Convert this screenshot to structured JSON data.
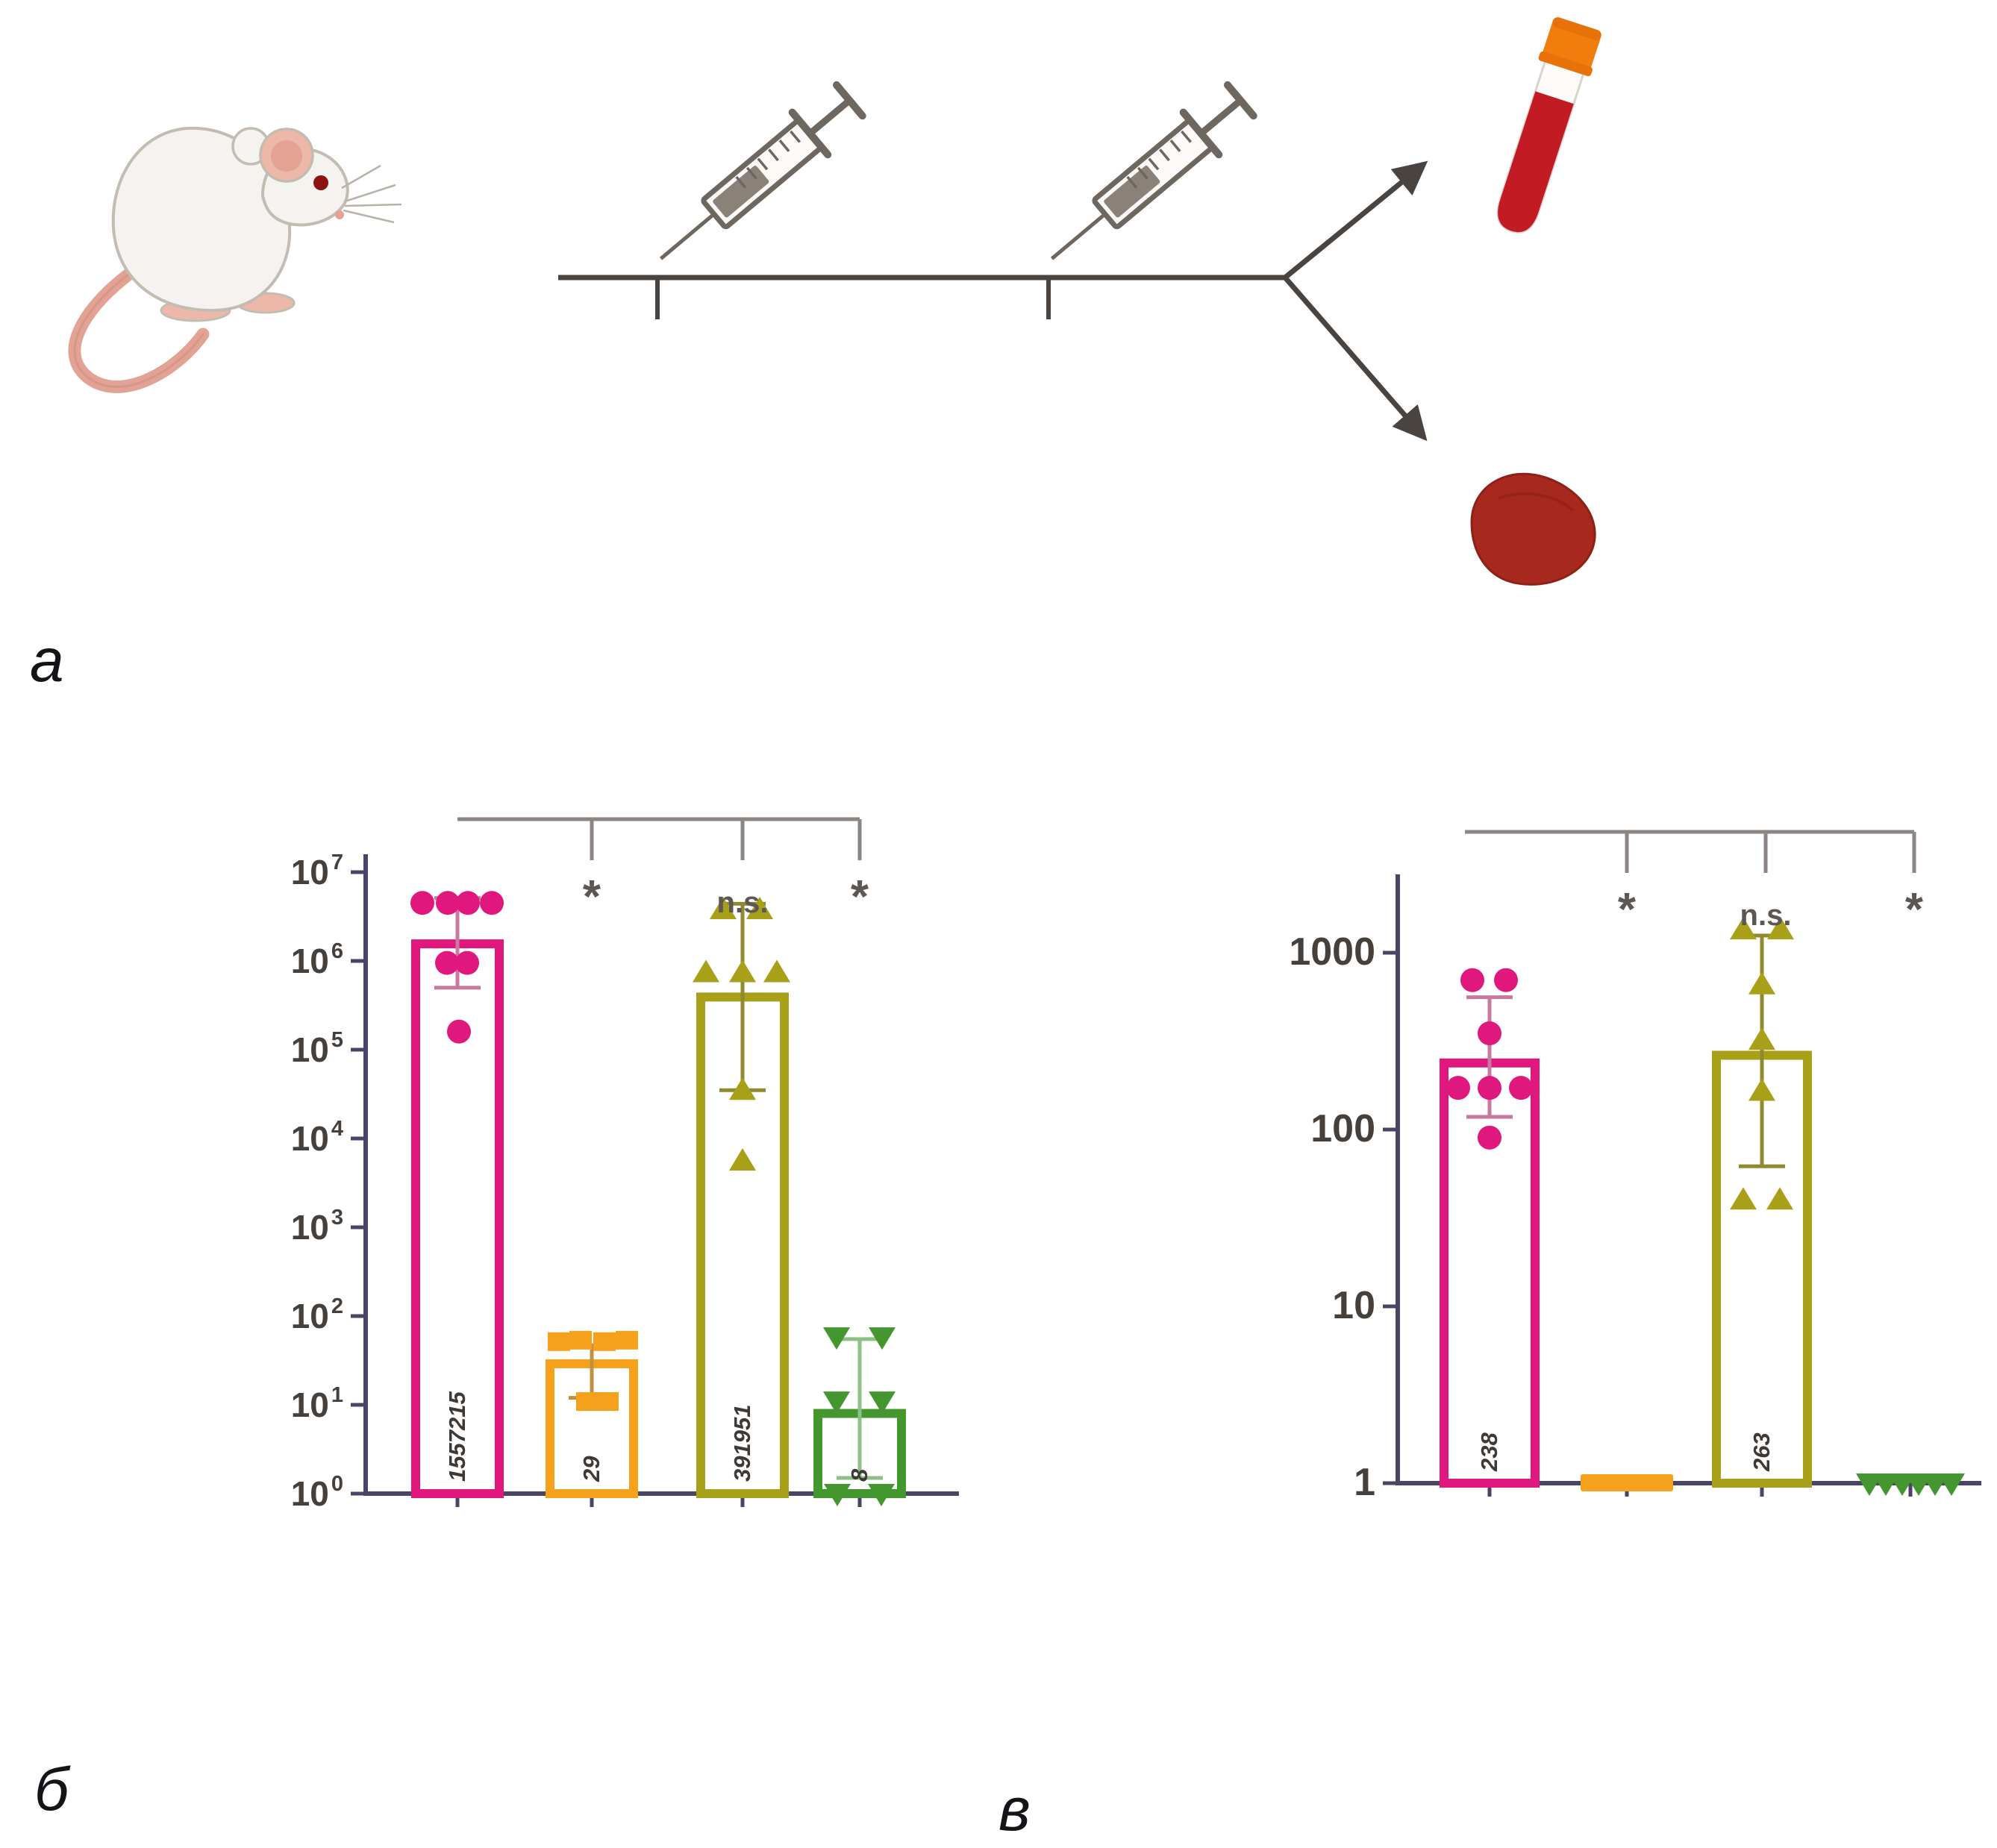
{
  "panels": {
    "a_label": "а",
    "b_label": "б",
    "v_label": "в"
  },
  "colors": {
    "pink": "#E0187D",
    "orange": "#F6A11B",
    "olive": "#A7A018",
    "green": "#44962F",
    "axis": "#4B4466",
    "bracket": "#8C8683",
    "tick_text": "#45403C",
    "value_text": "#3E3935",
    "sig_text": "#5C5754",
    "blood_red": "#C21B24",
    "cap_orange": "#F07D0C",
    "spleen_red": "#A7291E",
    "schematic_line": "#4A4441"
  },
  "schematic": {
    "icons": [
      "mouse-icon",
      "syringe-icon",
      "syringe-icon",
      "timeline",
      "arrow-icon",
      "arrow-icon",
      "blood-tube-icon",
      "spleen-icon"
    ]
  },
  "chart_data": [
    {
      "id": "chart-b",
      "type": "bar",
      "scale": "log",
      "title": "",
      "xlabel": "",
      "ylabel": "",
      "ylim": [
        1,
        10000000
      ],
      "grid": false,
      "y_ticks": [
        {
          "label": "10",
          "exp": "7",
          "value": 10000000
        },
        {
          "label": "10",
          "exp": "6",
          "value": 1000000
        },
        {
          "label": "10",
          "exp": "5",
          "value": 100000
        },
        {
          "label": "10",
          "exp": "4",
          "value": 10000
        },
        {
          "label": "10",
          "exp": "3",
          "value": 1000
        },
        {
          "label": "10",
          "exp": "2",
          "value": 100
        },
        {
          "label": "10",
          "exp": "1",
          "value": 10
        },
        {
          "label": "10",
          "exp": "0",
          "value": 1
        }
      ],
      "groups": [
        {
          "name": "group-1",
          "color": "#E0187D",
          "error_color": "#C9799F",
          "marker": "circle",
          "mean": 1557215,
          "label": "1557215",
          "error": {
            "low": 500000,
            "high": 5100000
          },
          "points": [
            {
              "v": 4500000,
              "dx": -47
            },
            {
              "v": 4500000,
              "dx": -13
            },
            {
              "v": 4500000,
              "dx": 14
            },
            {
              "v": 4500000,
              "dx": 46
            },
            {
              "v": 950000,
              "dx": -14
            },
            {
              "v": 950000,
              "dx": 13
            },
            {
              "v": 160000,
              "dx": 2
            }
          ]
        },
        {
          "name": "group-2",
          "color": "#F6A11B",
          "error_color": "#C2913F",
          "marker": "square",
          "mean": 29,
          "label": "29",
          "error": {
            "low": 12,
            "high": 47
          },
          "points": [
            {
              "v": 52,
              "dx": -44
            },
            {
              "v": 54,
              "dx": -15
            },
            {
              "v": 52,
              "dx": 17
            },
            {
              "v": 54,
              "dx": 47
            },
            {
              "v": 11,
              "dx": -6
            },
            {
              "v": 11,
              "dx": 21
            }
          ]
        },
        {
          "name": "group-3",
          "color": "#A7A018",
          "error_color": "#8F8930",
          "marker": "triangle-up",
          "mean": 391951,
          "label": "391951",
          "error": {
            "low": 35000,
            "high": 4400000
          },
          "points": [
            {
              "v": 3800000,
              "dx": -26
            },
            {
              "v": 3800000,
              "dx": 23
            },
            {
              "v": 740000,
              "dx": -49
            },
            {
              "v": 740000,
              "dx": 0
            },
            {
              "v": 740000,
              "dx": 46
            },
            {
              "v": 35000,
              "dx": 0
            },
            {
              "v": 5600,
              "dx": 0
            }
          ]
        },
        {
          "name": "group-4",
          "color": "#44962F",
          "error_color": "#8CC084",
          "marker": "triangle-down",
          "mean": 8,
          "label": "8",
          "error": {
            "low": 1.5,
            "high": 55
          },
          "points": [
            {
              "v": 58,
              "dx": -31
            },
            {
              "v": 58,
              "dx": 30
            },
            {
              "v": 11,
              "dx": -31
            },
            {
              "v": 11,
              "dx": 30
            },
            {
              "v": 1,
              "dx": -30
            },
            {
              "v": 1,
              "dx": 29
            }
          ]
        }
      ],
      "significance": {
        "labels": [
          "*",
          "n.s.",
          "*"
        ]
      }
    },
    {
      "id": "chart-v",
      "type": "bar",
      "scale": "log",
      "title": "",
      "xlabel": "",
      "ylabel": "",
      "ylim": [
        1,
        2000
      ],
      "grid": false,
      "y_ticks": [
        {
          "label": "1000",
          "value": 1000
        },
        {
          "label": "100",
          "value": 100
        },
        {
          "label": "10",
          "value": 10
        },
        {
          "label": "1",
          "value": 1
        }
      ],
      "groups": [
        {
          "name": "group-1",
          "color": "#E0187D",
          "error_color": "#C9799F",
          "marker": "circle",
          "mean": 238,
          "label": "238",
          "error": {
            "low": 118,
            "high": 560
          },
          "points": [
            {
              "v": 700,
              "dx": -23
            },
            {
              "v": 700,
              "dx": 22
            },
            {
              "v": 350,
              "dx": 0
            },
            {
              "v": 172,
              "dx": -42
            },
            {
              "v": 172,
              "dx": 0
            },
            {
              "v": 172,
              "dx": 42
            },
            {
              "v": 90,
              "dx": 0
            }
          ]
        },
        {
          "name": "group-2",
          "color": "#F6A11B",
          "marker": "none",
          "mean": 1,
          "flat": true,
          "flat_style": "bar",
          "points": []
        },
        {
          "name": "group-3",
          "color": "#A7A018",
          "error_color": "#8F8930",
          "marker": "triangle-up",
          "mean": 263,
          "label": "263",
          "error": {
            "low": 62,
            "high": 1250
          },
          "points": [
            {
              "v": 1350,
              "dx": -25
            },
            {
              "v": 1350,
              "dx": 25
            },
            {
              "v": 660,
              "dx": 0
            },
            {
              "v": 320,
              "dx": 0
            },
            {
              "v": 165,
              "dx": 0
            },
            {
              "v": 40,
              "dx": -25
            },
            {
              "v": 40,
              "dx": 24
            }
          ]
        },
        {
          "name": "group-4",
          "color": "#44962F",
          "marker": "triangle-down",
          "mean": 1,
          "flat": true,
          "flat_style": "line",
          "points": [
            {
              "v": 1,
              "dx": -55
            },
            {
              "v": 1,
              "dx": -33
            },
            {
              "v": 1,
              "dx": -11
            },
            {
              "v": 1,
              "dx": 11
            },
            {
              "v": 1,
              "dx": 33
            },
            {
              "v": 1,
              "dx": 55
            }
          ]
        }
      ],
      "significance": {
        "labels": [
          "*",
          "n.s.",
          "*"
        ]
      }
    }
  ]
}
